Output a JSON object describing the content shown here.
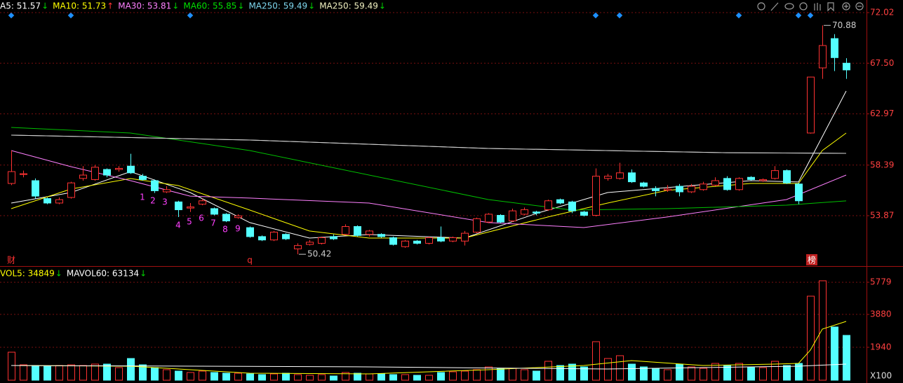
{
  "chart_data": [
    {
      "type": "candlestick",
      "ylim": [
        49.49,
        73.15
      ],
      "yticks": [
        72.02,
        {
          "value": 67.5,
          "label": "67.50"
        },
        62.97,
        58.39,
        53.87
      ],
      "up_color": "#ff3232",
      "down_color": "#54ffff",
      "grid": true,
      "open": [
        56.75,
        57.55,
        57.0,
        55.4,
        55.0,
        55.5,
        57.2,
        57.1,
        58.0,
        58.0,
        58.3,
        57.4,
        57.0,
        56.0,
        55.1,
        54.55,
        54.9,
        54.5,
        54.0,
        53.7,
        52.8,
        52.0,
        51.7,
        52.2,
        50.9,
        51.3,
        51.4,
        52.0,
        52.2,
        52.9,
        52.2,
        52.2,
        51.9,
        51.1,
        51.6,
        51.4,
        51.9,
        51.6,
        51.6,
        52.4,
        53.3,
        53.9,
        53.4,
        54.0,
        54.2,
        54.4,
        55.3,
        55.1,
        54.2,
        53.9,
        57.2,
        57.2,
        57.7,
        56.8,
        56.3,
        56.15,
        56.5,
        56.0,
        56.2,
        56.6,
        57.2,
        56.2,
        57.3,
        57.0,
        57.2,
        57.9,
        56.7,
        61.26,
        67.08,
        69.7,
        67.5
      ],
      "high": [
        59.69,
        57.9,
        57.2,
        55.5,
        55.5,
        56.9,
        58.3,
        58.4,
        58.1,
        58.3,
        59.4,
        57.6,
        57.1,
        56.5,
        55.2,
        55.0,
        55.4,
        54.6,
        54.1,
        54.0,
        52.9,
        52.1,
        52.5,
        52.3,
        51.4,
        51.7,
        52.0,
        52.2,
        53.1,
        53.0,
        52.6,
        52.3,
        52.0,
        51.7,
        51.7,
        52.0,
        52.9,
        52.0,
        52.5,
        53.7,
        54.1,
        54.0,
        54.5,
        54.6,
        54.3,
        55.3,
        55.4,
        55.2,
        54.3,
        58.1,
        57.6,
        58.6,
        58.0,
        56.9,
        56.5,
        56.6,
        56.7,
        56.7,
        56.9,
        57.3,
        57.4,
        57.3,
        57.4,
        57.2,
        58.3,
        58.0,
        56.8,
        66.3,
        70.88,
        70.1,
        67.95
      ],
      "low": [
        56.6,
        57.3,
        55.4,
        54.9,
        54.9,
        55.4,
        57.0,
        57.0,
        57.3,
        57.8,
        57.6,
        57.0,
        55.9,
        55.9,
        53.75,
        54.2,
        54.8,
        53.9,
        53.3,
        53.6,
        51.9,
        51.6,
        51.6,
        51.7,
        50.42,
        51.2,
        51.3,
        51.7,
        52.1,
        52.0,
        52.0,
        51.9,
        51.2,
        51.0,
        51.3,
        51.3,
        51.5,
        51.5,
        51.2,
        52.3,
        53.2,
        53.2,
        53.3,
        53.9,
        53.9,
        54.3,
        54.9,
        54.1,
        53.8,
        53.8,
        57.0,
        57.1,
        56.8,
        56.4,
        55.6,
        56.0,
        55.6,
        55.9,
        56.1,
        56.5,
        56.1,
        56.1,
        57.0,
        56.9,
        57.1,
        56.7,
        54.9,
        61.2,
        66.1,
        66.8,
        66.1
      ],
      "close": [
        57.81,
        57.62,
        55.62,
        55.0,
        55.3,
        56.8,
        57.5,
        58.2,
        57.5,
        58.1,
        57.7,
        57.1,
        56.1,
        56.2,
        54.4,
        54.65,
        55.2,
        54.0,
        53.4,
        53.85,
        52.0,
        51.7,
        52.4,
        51.8,
        51.2,
        51.5,
        51.9,
        51.8,
        52.9,
        52.1,
        52.5,
        52.0,
        51.3,
        51.6,
        51.4,
        51.9,
        51.6,
        51.9,
        52.3,
        53.6,
        54.0,
        53.3,
        54.3,
        54.4,
        54.1,
        55.2,
        55.0,
        54.3,
        53.9,
        57.4,
        57.4,
        57.7,
        56.9,
        56.5,
        56.1,
        56.25,
        56.0,
        56.5,
        56.7,
        57.0,
        56.2,
        57.2,
        57.1,
        57.1,
        57.9,
        56.8,
        55.2,
        66.26,
        69.08,
        68.0,
        66.9
      ],
      "series": [
        {
          "name": "A5: 51.57",
          "arrow": "↓",
          "color": "#ffffff",
          "line_color": "#ffffff",
          "x": [
            0,
            5,
            10,
            15,
            20,
            25,
            30,
            38,
            44,
            50,
            55,
            62,
            66,
            68,
            70
          ],
          "values": [
            55.0,
            55.94,
            57.81,
            55.94,
            53.25,
            51.87,
            52.18,
            51.87,
            54.06,
            55.94,
            56.38,
            57.0,
            56.88,
            60.94,
            65.01
          ]
        },
        {
          "name": "MA10: 51.73",
          "arrow": "↑",
          "color": "#ffff00",
          "line_color": "#ffff00",
          "x": [
            0,
            5,
            10,
            14,
            20,
            25,
            30,
            38,
            45,
            50,
            55,
            62,
            66,
            68,
            70
          ],
          "values": [
            54.5,
            56.25,
            57.19,
            56.56,
            54.37,
            52.5,
            51.87,
            51.87,
            53.75,
            55.0,
            56.13,
            56.75,
            56.75,
            59.69,
            61.26
          ]
        },
        {
          "name": "MA30: 53.81",
          "arrow": "↓",
          "color": "#ff80ff",
          "line_color": "#ff80ff",
          "x": [
            0,
            5,
            10,
            15,
            20,
            30,
            40,
            48,
            55,
            65,
            70
          ],
          "values": [
            59.69,
            58.25,
            57.0,
            55.62,
            55.44,
            55.0,
            53.25,
            52.81,
            53.75,
            55.31,
            57.5
          ]
        },
        {
          "name": "MA60: 55.85",
          "arrow": "↓",
          "color": "#00e000",
          "line_color": "#00c000",
          "x": [
            0,
            10,
            20,
            30,
            40,
            47,
            55,
            65,
            70
          ],
          "values": [
            61.76,
            61.26,
            59.69,
            57.5,
            55.31,
            54.37,
            54.5,
            54.81,
            55.19
          ]
        },
        {
          "name": "MA250: 59.49",
          "arrow": "↓",
          "color": "#7fd8f0",
          "line_color": "#d0d0d0",
          "x": [
            0,
            20,
            40,
            60,
            70
          ],
          "values": [
            61.07,
            60.63,
            59.88,
            59.5,
            59.44
          ]
        },
        {
          "name": "MA250: 59.49",
          "arrow": "↓",
          "color": "#f0f0c0",
          "line_color": "#d0d0d0",
          "x": [
            0,
            20,
            40,
            60,
            70
          ],
          "values": [
            61.07,
            60.63,
            59.88,
            59.5,
            59.44
          ]
        }
      ],
      "annotations": [
        "1",
        "2",
        "3",
        "4",
        "5",
        "6",
        "7",
        "8",
        "9"
      ],
      "markers": [
        "财",
        "q",
        "榜"
      ]
    },
    {
      "type": "bar",
      "ylim": [
        0,
        6608
      ],
      "yticks": [
        5779,
        3880,
        1940
      ],
      "unit": "X100",
      "grid": true,
      "values": [
        1652,
        909,
        867,
        826,
        867,
        909,
        867,
        950,
        950,
        743,
        1280,
        909,
        743,
        620,
        537,
        454,
        537,
        454,
        413,
        413,
        372,
        330,
        372,
        413,
        330,
        289,
        330,
        248,
        454,
        413,
        372,
        372,
        330,
        330,
        289,
        289,
        454,
        496,
        537,
        620,
        785,
        702,
        702,
        620,
        537,
        1115,
        867,
        950,
        785,
        2272,
        1280,
        1446,
        950,
        785,
        702,
        620,
        950,
        785,
        702,
        991,
        867,
        991,
        743,
        743,
        1115,
        867,
        991,
        4956,
        5865,
        3139,
        2643
      ],
      "series": [
        {
          "name": "VOL5: 34849",
          "arrow": "↓",
          "color": "#ffff00",
          "line_color": "#ffff00",
          "x": [
            0,
            10,
            20,
            30,
            40,
            48,
            52,
            58,
            64,
            66,
            67,
            68,
            70
          ],
          "values": [
            867,
            826,
            413,
            372,
            620,
            867,
            1156,
            867,
            950,
            991,
            1776,
            3015,
            3469
          ]
        },
        {
          "name": "MAVOL60: 63134",
          "arrow": "↓",
          "color": "#ffffff",
          "line_color": "#ffffff",
          "x": [
            0,
            30,
            50,
            66,
            70
          ],
          "values": [
            867,
            785,
            661,
            826,
            950
          ]
        }
      ]
    }
  ]
}
